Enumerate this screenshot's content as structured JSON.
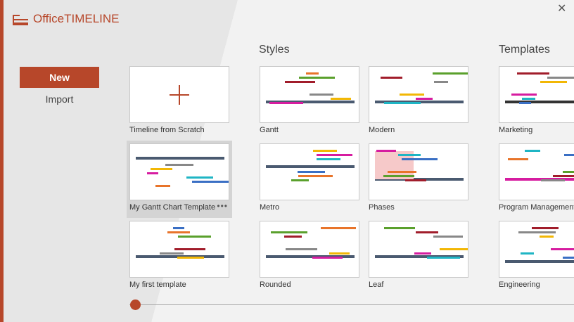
{
  "app": {
    "logo_text_a": "Office",
    "logo_text_b": "TIMELINE",
    "brand_color": "#b7472a"
  },
  "nav": {
    "new_label": "New",
    "import_label": "Import",
    "close_icon": "close-icon"
  },
  "sections": {
    "styles": "Styles",
    "templates": "Templates"
  },
  "cards": [
    {
      "label": "Timeline from Scratch",
      "kind": "scratch"
    },
    {
      "label": "Gantt",
      "kind": "gantt"
    },
    {
      "label": "Modern",
      "kind": "modern"
    },
    {
      "label": "Marketing",
      "kind": "marketing"
    },
    {
      "label": "My Gantt Chart Template",
      "kind": "gantt2",
      "selected": true,
      "more": "•••"
    },
    {
      "label": "Metro",
      "kind": "metro"
    },
    {
      "label": "Phases",
      "kind": "phases"
    },
    {
      "label": "Program Management",
      "kind": "program"
    },
    {
      "label": "My first template",
      "kind": "first"
    },
    {
      "label": "Rounded",
      "kind": "rounded"
    },
    {
      "label": "Leaf",
      "kind": "leaf"
    },
    {
      "label": "Engineering",
      "kind": "engineering"
    }
  ],
  "slider": {
    "position": 0
  }
}
